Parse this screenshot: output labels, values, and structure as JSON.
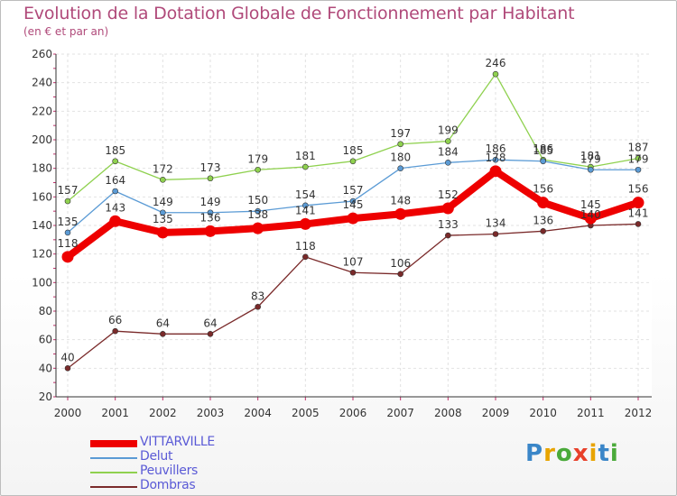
{
  "title": "Evolution de la Dotation Globale de Fonctionnement par Habitant",
  "subtitle": "(en € et par an)",
  "logo": {
    "text": "Proxiti",
    "colors": [
      "#3a86c8",
      "#e8a400",
      "#4aaa3a",
      "#e8402a",
      "#e8a400",
      "#3a86c8",
      "#4aaa3a"
    ]
  },
  "chart_data": {
    "type": "line",
    "title": "Evolution de la Dotation Globale de Fonctionnement par Habitant",
    "subtitle": "(en € et par an)",
    "xlabel": "",
    "ylabel": "",
    "categories": [
      "2000",
      "2001",
      "2002",
      "2003",
      "2004",
      "2005",
      "2006",
      "2007",
      "2008",
      "2009",
      "2010",
      "2011",
      "2012"
    ],
    "ylim": [
      20,
      260
    ],
    "yticks": [
      20,
      40,
      60,
      80,
      100,
      120,
      140,
      160,
      180,
      200,
      220,
      240,
      260
    ],
    "grid": true,
    "legend": "bottom-left",
    "series": [
      {
        "name": "VITTARVILLE",
        "color": "#ee0000",
        "values": [
          118,
          143,
          135,
          136,
          138,
          141,
          145,
          148,
          152,
          178,
          156,
          145,
          156
        ],
        "labels": [
          "118",
          "143",
          "135",
          "136",
          "138",
          "141",
          "145",
          "148",
          "152",
          "178",
          "156",
          "145",
          "156"
        ]
      },
      {
        "name": "Delut",
        "color": "#5b9bd5",
        "values": [
          135,
          164,
          149,
          149,
          150,
          154,
          157,
          180,
          184,
          186,
          185,
          179,
          179
        ],
        "labels": [
          "135",
          "164",
          "149",
          "149",
          "150",
          "154",
          "157",
          "180",
          "184",
          "186",
          "185",
          "179",
          "179"
        ]
      },
      {
        "name": "Peuvillers",
        "color": "#8fd14f",
        "values": [
          157,
          185,
          172,
          173,
          179,
          181,
          185,
          197,
          199,
          246,
          186,
          181,
          187
        ],
        "labels": [
          "157",
          "185",
          "172",
          "173",
          "179",
          "181",
          "185",
          "197",
          "199",
          "246",
          "186",
          "181",
          "187"
        ]
      },
      {
        "name": "Dombras",
        "color": "#7a2a2a",
        "values": [
          40,
          66,
          64,
          64,
          83,
          118,
          107,
          106,
          133,
          134,
          136,
          140,
          141
        ],
        "labels": [
          "40",
          "66",
          "64",
          "64",
          "83",
          "118",
          "107",
          "106",
          "133",
          "134",
          "136",
          "140",
          "141"
        ]
      }
    ]
  }
}
